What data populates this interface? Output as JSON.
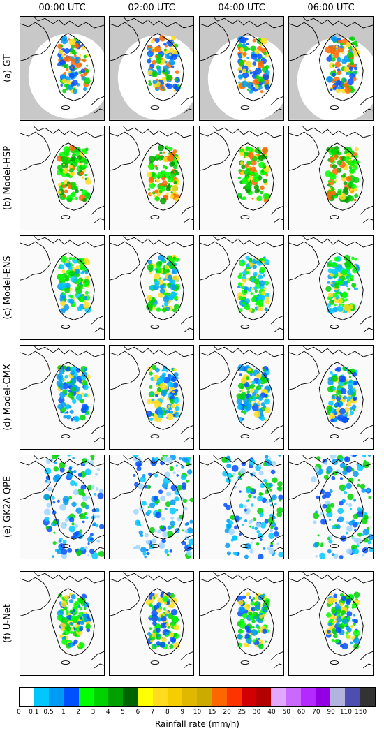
{
  "columns": [
    "00:00 UTC",
    "02:00 UTC",
    "04:00 UTC",
    "06:00 UTC"
  ],
  "rows": [
    {
      "label": "(a) GT",
      "type": "gt"
    },
    {
      "label": "(b) Model-HSP",
      "type": "hsp"
    },
    {
      "label": "(c) Model-ENS",
      "type": "ens"
    },
    {
      "label": "(d) Model-CMX",
      "type": "cmx"
    },
    {
      "label": "(e) GK2A QPE",
      "type": "gk2a"
    },
    {
      "label": "(f) U-Net",
      "type": "unet"
    }
  ],
  "colorbar": {
    "title": "Rainfall rate (mm/h)",
    "ticks": [
      "0",
      "0.1",
      "0.5",
      "1",
      "2",
      "3",
      "4",
      "5",
      "6",
      "7",
      "8",
      "9",
      "10",
      "15",
      "20",
      "25",
      "30",
      "40",
      "50",
      "60",
      "70",
      "90",
      "110",
      "150"
    ],
    "colors": [
      "#ffffff",
      "#00c8ff",
      "#009bf5",
      "#0050ff",
      "#00ff00",
      "#00d200",
      "#00a000",
      "#006400",
      "#ffff00",
      "#ffdc1f",
      "#f5cd00",
      "#e0b800",
      "#ccaa00",
      "#ff6600",
      "#ff3300",
      "#d20000",
      "#b40000",
      "#e0a9ff",
      "#c969ff",
      "#b329ff",
      "#9300e4",
      "#b3b4de",
      "#4c4eb1",
      "#333333"
    ]
  }
}
